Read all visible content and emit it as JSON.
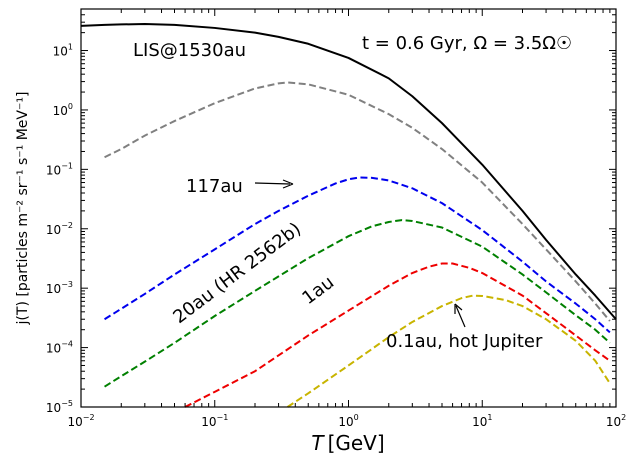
{
  "chart_data": {
    "type": "line",
    "x_scale": "log",
    "y_scale": "log",
    "xlim": [
      0.01,
      100
    ],
    "ylim": [
      1e-05,
      50
    ],
    "x_ticks": [
      {
        "base": "10",
        "exp": "−2"
      },
      {
        "base": "10",
        "exp": "−1"
      },
      {
        "base": "10",
        "exp": "0"
      },
      {
        "base": "10",
        "exp": "1"
      },
      {
        "base": "10",
        "exp": "2"
      }
    ],
    "y_ticks": [
      {
        "base": "10",
        "exp": "−5"
      },
      {
        "base": "10",
        "exp": "−4"
      },
      {
        "base": "10",
        "exp": "−3"
      },
      {
        "base": "10",
        "exp": "−2"
      },
      {
        "base": "10",
        "exp": "−1"
      },
      {
        "base": "10",
        "exp": "0"
      },
      {
        "base": "10",
        "exp": "1"
      }
    ],
    "xlabel_symbol": "T",
    "xlabel_unit": "[GeV]",
    "ylabel": "j(T) [particles m⁻² sr⁻¹ s⁻¹ MeV⁻¹]",
    "title_annotation": "t = 0.6 Gyr, Ω = 3.5Ω☉",
    "grid": false,
    "series": [
      {
        "name": "LIS@1530au",
        "color": "#000000",
        "dash": "solid",
        "x": [
          0.01,
          0.015,
          0.02,
          0.03,
          0.05,
          0.1,
          0.2,
          0.3,
          0.5,
          1,
          2,
          3,
          5,
          10,
          20,
          30,
          50,
          70,
          100
        ],
        "y": [
          26,
          27,
          27.5,
          28,
          27,
          24,
          20,
          17,
          13,
          7.5,
          3.4,
          1.7,
          0.6,
          0.12,
          0.02,
          0.0065,
          0.0017,
          0.00075,
          0.0003
        ]
      },
      {
        "name": "",
        "color": "#808080",
        "dash": "dashed",
        "x": [
          0.015,
          0.02,
          0.03,
          0.05,
          0.1,
          0.2,
          0.3,
          0.35,
          0.5,
          1,
          2,
          3,
          5,
          10,
          20,
          30,
          50,
          70,
          90
        ],
        "y": [
          0.16,
          0.22,
          0.37,
          0.65,
          1.3,
          2.3,
          2.8,
          2.9,
          2.7,
          1.8,
          0.85,
          0.5,
          0.22,
          0.06,
          0.012,
          0.0045,
          0.0013,
          0.00055,
          0.00028
        ]
      },
      {
        "name": "117au",
        "color": "#0000ee",
        "dash": "dashed",
        "x": [
          0.015,
          0.02,
          0.03,
          0.05,
          0.1,
          0.2,
          0.3,
          0.5,
          0.8,
          1,
          1.2,
          1.5,
          2,
          3,
          5,
          10,
          20,
          30,
          50,
          70,
          90
        ],
        "y": [
          0.0003,
          0.00045,
          0.0008,
          0.0017,
          0.0045,
          0.012,
          0.02,
          0.036,
          0.058,
          0.068,
          0.073,
          0.072,
          0.065,
          0.048,
          0.027,
          0.0095,
          0.0028,
          0.0013,
          0.00055,
          0.0003,
          0.00018
        ]
      },
      {
        "name": "20au (HR 2562b)",
        "color": "#008000",
        "dash": "dashed",
        "x": [
          0.015,
          0.02,
          0.03,
          0.05,
          0.1,
          0.2,
          0.5,
          1,
          1.5,
          2,
          2.5,
          3,
          5,
          10,
          20,
          30,
          50,
          70,
          90
        ],
        "y": [
          2.2e-05,
          3.3e-05,
          5.8e-05,
          0.00012,
          0.00034,
          0.0009,
          0.0032,
          0.0075,
          0.011,
          0.013,
          0.014,
          0.0135,
          0.0105,
          0.005,
          0.0017,
          0.00085,
          0.00035,
          0.0002,
          0.00012
        ]
      },
      {
        "name": "1au",
        "color": "#ee0000",
        "dash": "dashed",
        "x": [
          0.06,
          0.1,
          0.2,
          0.5,
          1,
          2,
          3,
          4,
          5,
          6,
          8,
          10,
          20,
          30,
          50,
          70,
          90
        ],
        "y": [
          1e-05,
          1.8e-05,
          4e-05,
          0.00016,
          0.00042,
          0.0011,
          0.0018,
          0.0023,
          0.0026,
          0.0026,
          0.0022,
          0.0018,
          0.00075,
          0.00038,
          0.00016,
          9e-05,
          6e-05
        ]
      },
      {
        "name": "0.1au, hot Jupiter",
        "color": "#c8b400",
        "dash": "dashed",
        "x": [
          0.35,
          0.5,
          1,
          2,
          3,
          5,
          7,
          8.5,
          10,
          15,
          20,
          30,
          50,
          70,
          90
        ],
        "y": [
          1e-05,
          1.7e-05,
          5e-05,
          0.00015,
          0.00027,
          0.0005,
          0.00068,
          0.00075,
          0.00074,
          0.00063,
          0.0005,
          0.0003,
          0.00013,
          6e-05,
          2.5e-05
        ]
      }
    ]
  }
}
